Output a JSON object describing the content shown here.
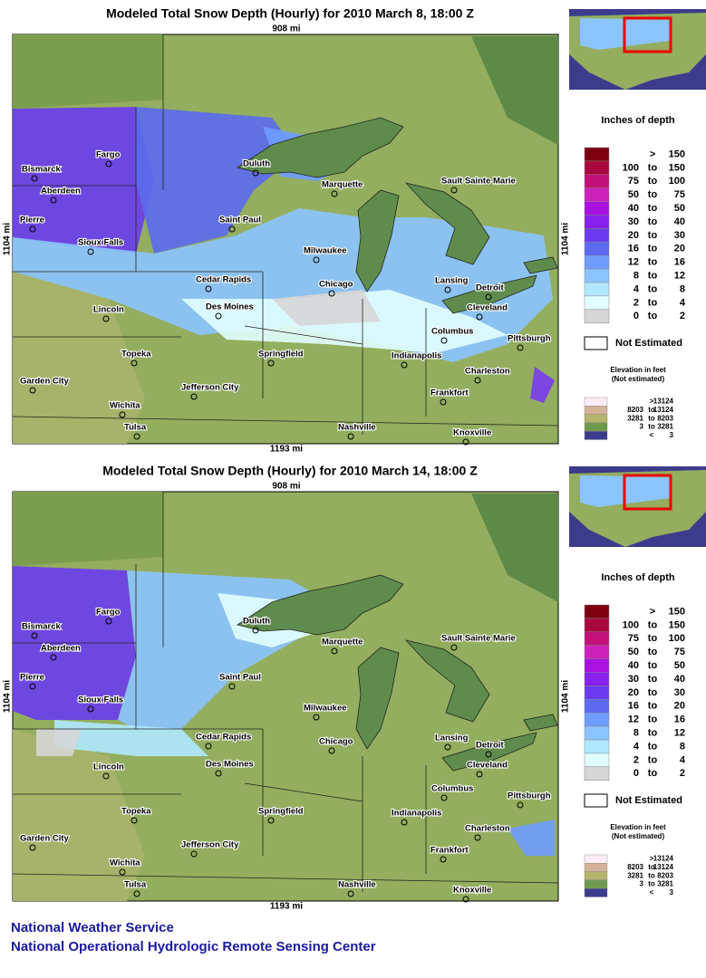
{
  "panels": [
    {
      "title": "Modeled Total Snow Depth (Hourly) for 2010 March 8, 18:00 Z",
      "top_distance": "908 mi",
      "side_distance": "1104 mi",
      "bottom_distance": "1193 mi"
    },
    {
      "title": "Modeled Total Snow Depth (Hourly) for 2010 March 14, 18:00 Z",
      "top_distance": "908 mi",
      "side_distance": "1104 mi",
      "bottom_distance": "1193 mi"
    }
  ],
  "cities": [
    "Bismarck",
    "Fargo",
    "Duluth",
    "Marquette",
    "Sault Sainte Marie",
    "Aberdeen",
    "Saint Paul",
    "Pierre",
    "Sioux Falls",
    "Milwaukee",
    "Cedar Rapids",
    "Chicago",
    "Lansing",
    "Detroit",
    "Lincoln",
    "Des Moines",
    "Cleveland",
    "Columbus",
    "Pittsburgh",
    "Topeka",
    "Springfield",
    "Indianapolis",
    "Garden City",
    "Charleston",
    "Jefferson City",
    "Frankfort",
    "Wichita",
    "Tulsa",
    "Nashville",
    "Knoxville"
  ],
  "legend": {
    "title": "Inches of depth",
    "rows": [
      {
        "color": "#7d0010",
        "labels": [
          ">",
          "150"
        ]
      },
      {
        "color": "#a8083e",
        "labels": [
          "100",
          "to",
          "150"
        ]
      },
      {
        "color": "#c2127a",
        "labels": [
          "75",
          "to",
          "100"
        ]
      },
      {
        "color": "#cc22bb",
        "labels": [
          "50",
          "to",
          "75"
        ]
      },
      {
        "color": "#aa10e0",
        "labels": [
          "40",
          "to",
          "50"
        ]
      },
      {
        "color": "#8820ee",
        "labels": [
          "30",
          "to",
          "40"
        ]
      },
      {
        "color": "#6a3cee",
        "labels": [
          "20",
          "to",
          "30"
        ]
      },
      {
        "color": "#5b6af0",
        "labels": [
          "16",
          "to",
          "20"
        ]
      },
      {
        "color": "#6f9cff",
        "labels": [
          "12",
          "to",
          "16"
        ]
      },
      {
        "color": "#8cc4ff",
        "labels": [
          "8",
          "to",
          "12"
        ]
      },
      {
        "color": "#b0e8ff",
        "labels": [
          "4",
          "to",
          "8"
        ]
      },
      {
        "color": "#e2ffff",
        "labels": [
          "2",
          "to",
          "4"
        ]
      },
      {
        "color": "#d6d6d6",
        "labels": [
          "0",
          "to",
          "2"
        ]
      }
    ],
    "not_estimated": "Not Estimated",
    "elevation_title": "Elevation in feet",
    "elevation_subtitle": "(Not estimated)",
    "elevation_rows": [
      {
        "color": "#fbecf6",
        "labels": [
          ">",
          "13124"
        ]
      },
      {
        "color": "#d4b498",
        "labels": [
          "8203",
          "to",
          "13124"
        ]
      },
      {
        "color": "#b4b46c",
        "labels": [
          "3281",
          "to",
          "8203"
        ]
      },
      {
        "color": "#6f9a4e",
        "labels": [
          "3",
          "to",
          "3281"
        ]
      },
      {
        "color": "#3c3c8c",
        "labels": [
          "<",
          "3"
        ]
      }
    ]
  },
  "footer": {
    "line1": "National Weather Service",
    "line2": "National Operational Hydrologic Remote Sensing Center"
  }
}
